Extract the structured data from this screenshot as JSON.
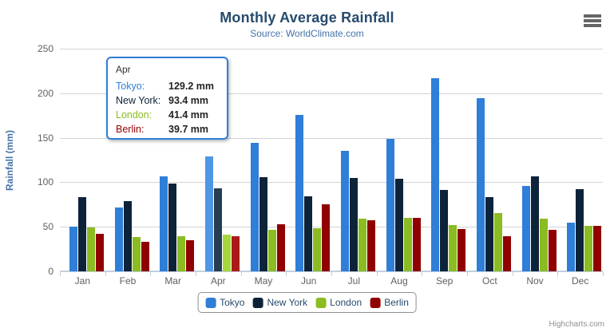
{
  "chart_data": {
    "type": "bar",
    "title": "Monthly Average Rainfall",
    "subtitle": "Source: WorldClimate.com",
    "categories": [
      "Jan",
      "Feb",
      "Mar",
      "Apr",
      "May",
      "Jun",
      "Jul",
      "Aug",
      "Sep",
      "Oct",
      "Nov",
      "Dec"
    ],
    "series": [
      {
        "name": "Tokyo",
        "color": "#2f7ed8",
        "hover_color": "#4f97e5",
        "values": [
          49.9,
          71.5,
          106.4,
          129.2,
          144.0,
          176.0,
          135.6,
          148.5,
          216.4,
          194.1,
          95.6,
          54.4
        ]
      },
      {
        "name": "New York",
        "color": "#0d233a",
        "hover_color": "#273d54",
        "values": [
          83.6,
          78.8,
          98.5,
          93.4,
          106.0,
          84.5,
          105.0,
          104.3,
          91.2,
          83.5,
          106.6,
          92.3
        ]
      },
      {
        "name": "London",
        "color": "#8bbc21",
        "hover_color": "#a5d63b",
        "values": [
          48.9,
          38.8,
          39.3,
          41.4,
          47.0,
          48.3,
          59.0,
          59.6,
          52.4,
          65.2,
          59.3,
          51.2
        ]
      },
      {
        "name": "Berlin",
        "color": "#910000",
        "hover_color": "#ab1a1a",
        "values": [
          42.4,
          33.2,
          34.5,
          39.7,
          52.6,
          75.5,
          57.4,
          60.4,
          47.6,
          39.1,
          46.8,
          51.1
        ]
      }
    ],
    "xlabel": "",
    "ylabel": "Rainfall (mm)",
    "ylim": [
      0,
      250
    ],
    "yticks": [
      0,
      50,
      100,
      150,
      200,
      250
    ],
    "grid": true,
    "legend_position": "bottom",
    "unit_suffix": " mm"
  },
  "tooltip": {
    "header": "Apr",
    "category_index": 3,
    "rows": [
      {
        "label": "Tokyo:",
        "value": "129.2 mm",
        "color": "#2f7ed8"
      },
      {
        "label": "New York:",
        "value": "93.4 mm",
        "color": "#0d233a"
      },
      {
        "label": "London:",
        "value": "41.4 mm",
        "color": "#8bbc21"
      },
      {
        "label": "Berlin:",
        "value": "39.7 mm",
        "color": "#910000"
      }
    ]
  },
  "credits": "Highcharts.com",
  "export_menu": {
    "tooltip_name": "chart context menu"
  }
}
